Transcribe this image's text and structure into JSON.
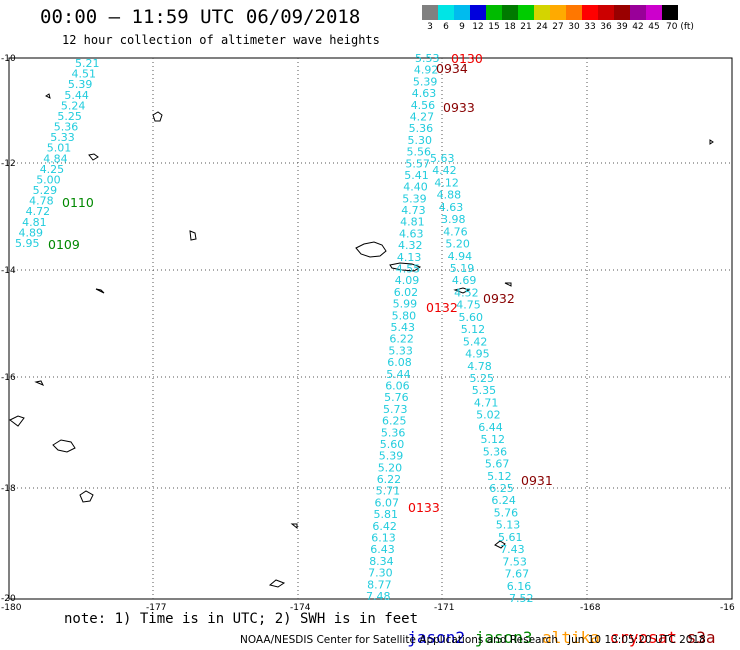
{
  "header": {
    "title": "00:00 – 11:59 UTC 06/09/2018",
    "subtitle": "12 hour collection of altimeter wave heights"
  },
  "color_scale": {
    "labels": [
      "3",
      "6",
      "9",
      "12",
      "15",
      "18",
      "21",
      "24",
      "27",
      "30",
      "33",
      "36",
      "39",
      "42",
      "45",
      "70 (ft)"
    ],
    "colors": [
      "#808080",
      "#00e5e5",
      "#00bbee",
      "#0000dd",
      "#00bb00",
      "#007a00",
      "#00cc00",
      "#d4d400",
      "#ffaa00",
      "#ff7700",
      "#ff0000",
      "#cc0000",
      "#990000",
      "#990099",
      "#cc00cc",
      "#000000"
    ]
  },
  "axes": {
    "lon_labels": [
      "-180",
      "-177",
      "-174",
      "-171",
      "-168",
      "-16"
    ],
    "lat_labels": [
      "-10",
      "-12",
      "-14",
      "-16",
      "-18",
      "-20"
    ]
  },
  "tracks": {
    "track_a": [
      "5.21",
      "4.51",
      "5.39",
      "5.44",
      "5.24",
      "5.25",
      "5.36",
      "5.33",
      "5.01",
      "4.84",
      "4.25",
      "5.00",
      "5.29",
      "4.78",
      "4.72",
      "4.81",
      "4.89",
      "5.95"
    ],
    "track_b": [
      "5.53",
      "4.92",
      "5.39",
      "4.63",
      "4.56",
      "4.27",
      "5.36",
      "5.30",
      "5.56",
      "5.57",
      "5.41",
      "4.40",
      "5.39",
      "4.73",
      "4.81",
      "4.63",
      "4.32",
      "4.13",
      "4.55",
      "4.09",
      "6.02",
      "5.99",
      "5.80",
      "5.43",
      "6.22",
      "5.33",
      "6.08",
      "5.44",
      "6.06",
      "5.76",
      "5.73",
      "6.25",
      "5.36",
      "5.60",
      "5.39",
      "5.20",
      "6.22",
      "5.71",
      "6.07",
      "5.81",
      "6.42",
      "6.13",
      "6.43",
      "8.34",
      "7.30",
      "8.77",
      "7.48"
    ],
    "track_c": [
      "5.63",
      "4.42",
      "4.12",
      "4.88",
      "4.63",
      "3.98",
      "4.76",
      "5.20",
      "4.94",
      "5.19",
      "4.69",
      "4.52",
      "4.75",
      "5.60",
      "5.12",
      "5.42",
      "4.95",
      "4.78",
      "5.25",
      "5.35",
      "4.71",
      "5.02",
      "6.44",
      "5.12",
      "5.36",
      "5.67",
      "5.12",
      "6.25",
      "6.24",
      "5.76",
      "5.13",
      "5.61",
      "7.43",
      "7.53",
      "7.67",
      "6.16",
      "7.52"
    ]
  },
  "times": {
    "green": [
      "0110",
      "0109"
    ],
    "red": [
      "0130",
      "0132",
      "0133"
    ],
    "dark_red": [
      "0934",
      "0933",
      "0932",
      "0931"
    ]
  },
  "note": "note: 1) Time is in UTC; 2) SWH is in feet",
  "legend": [
    {
      "label": "jason2",
      "color": "#0000cc"
    },
    {
      "label": "jason3",
      "color": "#008800"
    },
    {
      "label": "altika",
      "color": "#ff9900"
    },
    {
      "label": "cryosat",
      "color": "#ee0000"
    },
    {
      "label": "s3a",
      "color": "#990000"
    }
  ],
  "footer": "NOAA/NESDIS Center for Satellite Applications and Research   Jun 10 13:05:20 UTC 2018"
}
